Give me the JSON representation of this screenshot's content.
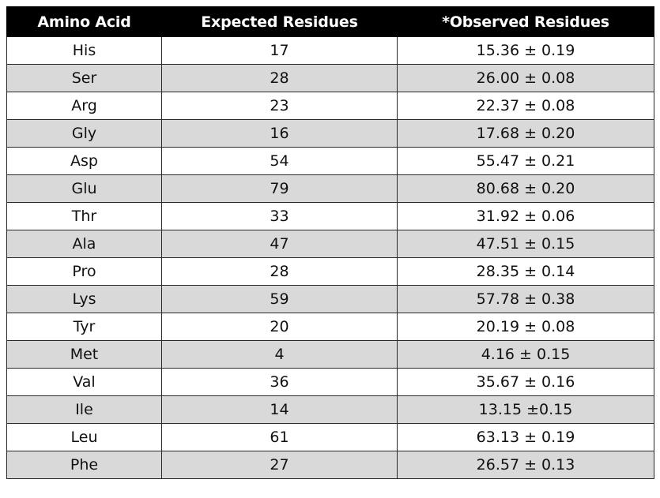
{
  "table": {
    "headers": [
      "Amino Acid",
      "Expected Residues",
      "*Observed Residues"
    ],
    "rows": [
      [
        "His",
        "17",
        "15.36 ± 0.19"
      ],
      [
        "Ser",
        "28",
        "26.00 ± 0.08"
      ],
      [
        "Arg",
        "23",
        "22.37 ± 0.08"
      ],
      [
        "Gly",
        "16",
        "17.68 ± 0.20"
      ],
      [
        "Asp",
        "54",
        "55.47 ± 0.21"
      ],
      [
        "Glu",
        "79",
        "80.68 ± 0.20"
      ],
      [
        "Thr",
        "33",
        "31.92 ± 0.06"
      ],
      [
        "Ala",
        "47",
        "47.51 ± 0.15"
      ],
      [
        "Pro",
        "28",
        "28.35 ± 0.14"
      ],
      [
        "Lys",
        "59",
        "57.78 ± 0.38"
      ],
      [
        "Tyr",
        "20",
        "20.19 ± 0.08"
      ],
      [
        "Met",
        "4",
        "4.16 ± 0.15"
      ],
      [
        "Val",
        "36",
        "35.67 ± 0.16"
      ],
      [
        "Ile",
        "14",
        "13.15 ±0.15"
      ],
      [
        "Leu",
        "61",
        "63.13 ± 0.19"
      ],
      [
        "Phe",
        "27",
        "26.57 ± 0.13"
      ]
    ]
  },
  "colors": {
    "header_background": "#000000",
    "header_text": "#ffffff",
    "stripe": "#d9d9d9"
  }
}
